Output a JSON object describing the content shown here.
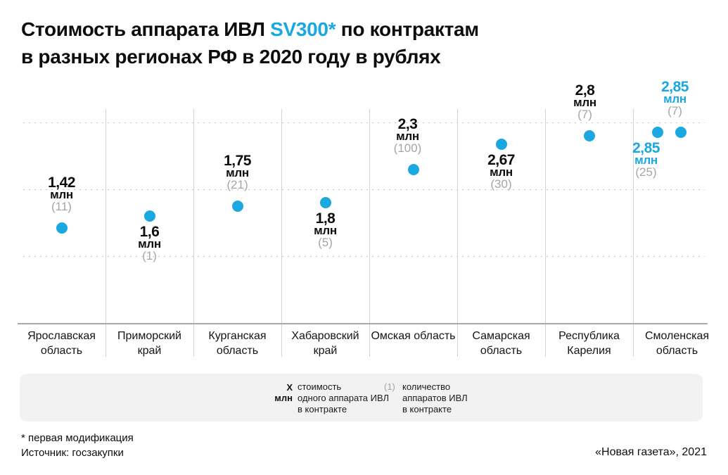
{
  "title": {
    "part1": "Стоимость аппарата ИВЛ ",
    "highlight": "SV300*",
    "part2": " по контрактам",
    "line2": "в разных регионах РФ в 2020 году в рублях"
  },
  "colors": {
    "accent_blue": "#1ba7e0",
    "count_gray": "#a5a5a5",
    "legend_band": "#f2f2f2",
    "gridline": "#c3c3c3",
    "axis": "#a8a8a8"
  },
  "chart_data": {
    "type": "scatter",
    "title": "Стоимость аппарата ИВЛ SV300* по контрактам в разных регионах РФ в 2020 году в рублях",
    "unit_label": "млн",
    "ylim": [
      0,
      3.2
    ],
    "grid_values": [
      1,
      2,
      3
    ],
    "grid_style": "dotted horizontal, unlabeled, values in millions of rubles",
    "legend_position": "bottom band",
    "categories": [
      "Ярославская область",
      "Приморский край",
      "Курганская область",
      "Хабаровский край",
      "Омская область",
      "Самарская область",
      "Республика Карелия",
      "Смоленская область"
    ],
    "points": [
      {
        "category": "Ярославская область",
        "price_mln": 1.42,
        "price_label": "1,42",
        "count": 11,
        "label_pos": "above",
        "accent": false,
        "dx": 0,
        "label_dx": 0
      },
      {
        "category": "Приморский край",
        "price_mln": 1.6,
        "price_label": "1,6",
        "count": 1,
        "label_pos": "below",
        "accent": false,
        "dx": 0,
        "label_dx": 0
      },
      {
        "category": "Курганская область",
        "price_mln": 1.75,
        "price_label": "1,75",
        "count": 21,
        "label_pos": "above",
        "accent": false,
        "dx": 0,
        "label_dx": 0
      },
      {
        "category": "Хабаровский край",
        "price_mln": 1.8,
        "price_label": "1,8",
        "count": 5,
        "label_pos": "below",
        "accent": false,
        "dx": 0,
        "label_dx": 0
      },
      {
        "category": "Омская область",
        "price_mln": 2.3,
        "price_label": "2,3",
        "count": 100,
        "label_pos": "above",
        "accent": false,
        "dx": 0,
        "label_dx": -8
      },
      {
        "category": "Самарская область",
        "price_mln": 2.67,
        "price_label": "2,67",
        "count": 30,
        "label_pos": "below",
        "accent": false,
        "dx": 0,
        "label_dx": 0
      },
      {
        "category": "Республика Карелия",
        "price_mln": 2.8,
        "price_label": "2,8",
        "count": 7,
        "label_pos": "above",
        "accent": false,
        "dx": 0,
        "label_dx": -6
      },
      {
        "category": "Смоленская область",
        "price_mln": 2.85,
        "price_label": "2,85",
        "count": 25,
        "label_pos": "below",
        "accent": true,
        "dx": -28,
        "label_dx": -16
      },
      {
        "category": "Смоленская область",
        "price_mln": 2.85,
        "price_label": "2,85",
        "count": 7,
        "label_pos": "above",
        "accent": true,
        "dx": 5,
        "label_dx": -8
      }
    ]
  },
  "legend": {
    "marker1": "X\nмлн",
    "item1": "стоимость\nодного аппарата ИВЛ\nв контракте",
    "marker2": "(1)",
    "item2": "количество\nаппаратов ИВЛ\nв контракте"
  },
  "footer": {
    "note": "* первая модификация",
    "source": "Источник: госзакупки",
    "credit": "«Новая газета», 2021"
  }
}
